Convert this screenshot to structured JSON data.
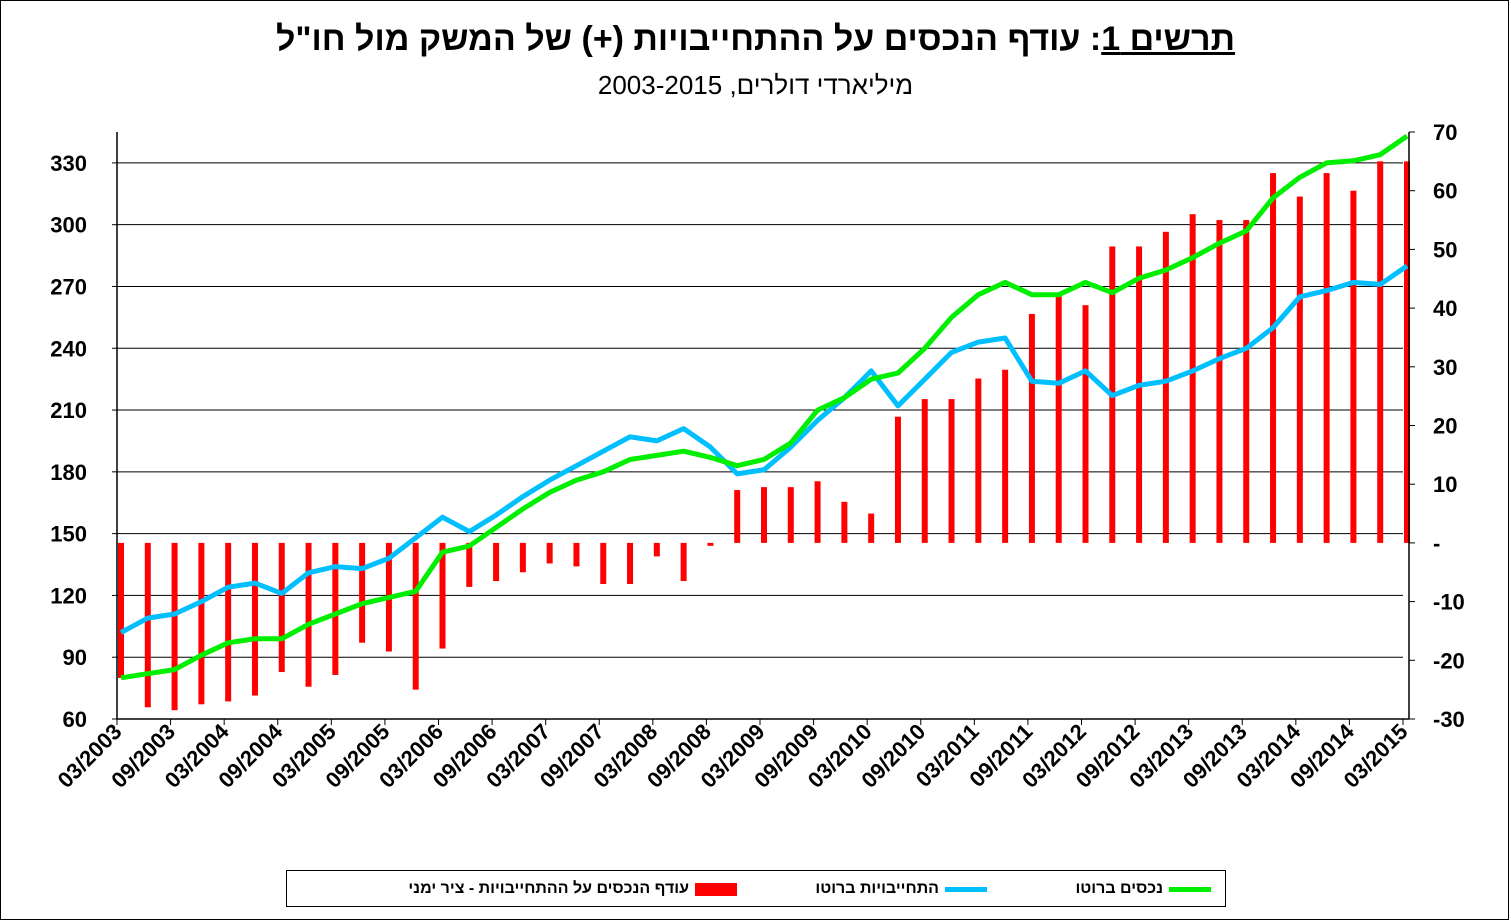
{
  "title": {
    "prefix": "תרשים 1",
    "colon": ":",
    "main": " עודף הנכסים על ההתחייבויות (+) של המשק מול חו\"ל"
  },
  "subtitle": "מיליארדי דולרים, 2003-2015",
  "legend": {
    "bar_label": "עודף הנכסים על ההתחייבויות - ציר ימני",
    "liabilities_label": "התחייבויות ברוטו",
    "assets_label": "נכסים ברוטו"
  },
  "colors": {
    "bar": "#ff0000",
    "liabilities": "#00bfff",
    "assets": "#00ee00",
    "grid": "#000000"
  },
  "chart_data": {
    "type": "bar+line",
    "x_tick_labels": [
      "03/2003",
      "09/2003",
      "03/2004",
      "09/2004",
      "03/2005",
      "09/2005",
      "03/2006",
      "09/2006",
      "03/2007",
      "09/2007",
      "03/2008",
      "09/2008",
      "03/2009",
      "09/2009",
      "03/2010",
      "09/2010",
      "03/2011",
      "09/2011",
      "03/2012",
      "09/2012",
      "03/2013",
      "09/2013",
      "03/2014",
      "09/2014",
      "03/2015"
    ],
    "left_axis": {
      "min": 60,
      "max": 345,
      "ticks": [
        60,
        90,
        120,
        150,
        180,
        210,
        240,
        270,
        300,
        330
      ]
    },
    "right_axis": {
      "min": -30,
      "max": 70,
      "ticks": [
        -30,
        -20,
        -10,
        0,
        10,
        20,
        30,
        40,
        50,
        60,
        70
      ],
      "tick_labels": [
        "-30",
        "-20",
        "-10",
        "-",
        "10",
        "20",
        "30",
        "40",
        "50",
        "60",
        "70"
      ]
    },
    "series": [
      {
        "name": "עודף הנכסים על ההתחייבויות - ציר ימני",
        "kind": "bar",
        "axis": "right",
        "values": [
          -23,
          -28,
          -28.5,
          -27.5,
          -27,
          -26,
          -22,
          -24.5,
          -22.5,
          -17,
          -18.5,
          -25,
          -18,
          -7.5,
          -6.5,
          -5,
          -3.5,
          -4,
          -7,
          -7,
          -2.3,
          -6.5,
          -0.5,
          9,
          9.5,
          9.5,
          10.5,
          7,
          5,
          21.5,
          24.5,
          24.5,
          28,
          29.5,
          39,
          42,
          40.5,
          50.5,
          50.5,
          53,
          56,
          55,
          55,
          63,
          59,
          63,
          60,
          65,
          65
        ]
      },
      {
        "name": "התחייבויות ברוטו",
        "kind": "line",
        "axis": "left",
        "values": [
          102,
          109,
          111,
          117,
          124,
          126,
          121,
          131,
          134,
          133,
          138,
          148,
          158,
          151,
          159,
          168,
          176,
          183,
          190,
          197,
          195,
          201,
          192,
          179,
          181,
          192,
          205,
          216,
          229,
          212,
          225,
          238,
          243,
          245,
          224,
          223,
          229,
          217,
          222,
          224,
          229,
          235,
          240,
          250,
          265,
          268,
          272,
          271,
          280
        ]
      },
      {
        "name": "נכסים ברוטו",
        "kind": "line",
        "axis": "left",
        "values": [
          80,
          82,
          84,
          91,
          97,
          99,
          99,
          106,
          111,
          116,
          119,
          122,
          141,
          144,
          153,
          162,
          170,
          176,
          180,
          186,
          188,
          190,
          187,
          183,
          186,
          194,
          210,
          216,
          225,
          228,
          240,
          255,
          266,
          272,
          266,
          266,
          272,
          267,
          274,
          278,
          284,
          291,
          297,
          313,
          323,
          330,
          331,
          334,
          343
        ]
      }
    ],
    "grid": true,
    "legend_position": "bottom"
  }
}
